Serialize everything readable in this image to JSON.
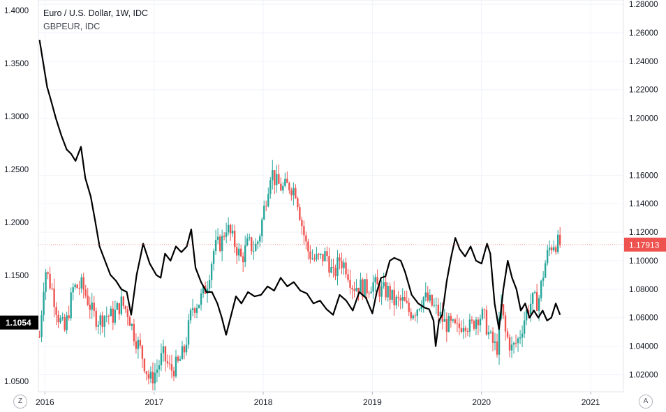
{
  "legend": {
    "main": "Euro / U.S. Dollar, 1W, IDC",
    "secondary": "GBPEUR, IDC"
  },
  "buttons": {
    "left": "Z",
    "right": "A"
  },
  "colors": {
    "up": "#26a69a",
    "down": "#ef5350",
    "line": "#000000",
    "last_price_label": "#ef5350",
    "left_label_bg": "#000000"
  },
  "chart_data": [
    {
      "type": "candlestick",
      "name": "Euro / U.S. Dollar, 1W, IDC",
      "axis": "left",
      "ylim": [
        1.04,
        1.41
      ],
      "y_ticks": [
        "1.4000",
        "1.3500",
        "1.3000",
        "1.2500",
        "1.2000",
        "1.1500",
        "1.0500"
      ],
      "x_labels": [
        "2016",
        "2017",
        "2018",
        "2019",
        "2020",
        "2021"
      ],
      "x_tick_values": [
        2016.0,
        2017.0,
        2018.0,
        2019.0,
        2020.0,
        2021.0
      ],
      "xlim": [
        2015.94,
        2021.3
      ],
      "anchors": [
        [
          2015.95,
          1.092
        ],
        [
          2016.0,
          1.157
        ],
        [
          2016.07,
          1.135
        ],
        [
          2016.12,
          1.112
        ],
        [
          2016.18,
          1.097
        ],
        [
          2016.26,
          1.138
        ],
        [
          2016.34,
          1.14
        ],
        [
          2016.4,
          1.125
        ],
        [
          2016.44,
          1.113
        ],
        [
          2016.5,
          1.107
        ],
        [
          2016.55,
          1.113
        ],
        [
          2016.62,
          1.111
        ],
        [
          2016.7,
          1.124
        ],
        [
          2016.76,
          1.115
        ],
        [
          2016.82,
          1.093
        ],
        [
          2016.88,
          1.078
        ],
        [
          2016.96,
          1.05
        ],
        [
          2017.02,
          1.06
        ],
        [
          2017.08,
          1.075
        ],
        [
          2017.15,
          1.06
        ],
        [
          2017.22,
          1.066
        ],
        [
          2017.28,
          1.08
        ],
        [
          2017.35,
          1.12
        ],
        [
          2017.42,
          1.126
        ],
        [
          2017.48,
          1.14
        ],
        [
          2017.55,
          1.175
        ],
        [
          2017.62,
          1.182
        ],
        [
          2017.66,
          1.197
        ],
        [
          2017.7,
          1.188
        ],
        [
          2017.76,
          1.175
        ],
        [
          2017.8,
          1.165
        ],
        [
          2017.86,
          1.18
        ],
        [
          2017.92,
          1.175
        ],
        [
          2017.96,
          1.185
        ],
        [
          2018.02,
          1.22
        ],
        [
          2018.07,
          1.25
        ],
        [
          2018.12,
          1.237
        ],
        [
          2018.18,
          1.232
        ],
        [
          2018.24,
          1.235
        ],
        [
          2018.3,
          1.23
        ],
        [
          2018.35,
          1.2
        ],
        [
          2018.4,
          1.175
        ],
        [
          2018.46,
          1.165
        ],
        [
          2018.52,
          1.165
        ],
        [
          2018.58,
          1.17
        ],
        [
          2018.64,
          1.148
        ],
        [
          2018.7,
          1.165
        ],
        [
          2018.76,
          1.158
        ],
        [
          2018.82,
          1.14
        ],
        [
          2018.88,
          1.14
        ],
        [
          2018.94,
          1.137
        ],
        [
          2019.0,
          1.143
        ],
        [
          2019.08,
          1.135
        ],
        [
          2019.14,
          1.135
        ],
        [
          2019.2,
          1.125
        ],
        [
          2019.28,
          1.125
        ],
        [
          2019.34,
          1.115
        ],
        [
          2019.4,
          1.118
        ],
        [
          2019.46,
          1.13
        ],
        [
          2019.52,
          1.125
        ],
        [
          2019.6,
          1.115
        ],
        [
          2019.66,
          1.105
        ],
        [
          2019.72,
          1.102
        ],
        [
          2019.78,
          1.098
        ],
        [
          2019.84,
          1.108
        ],
        [
          2019.9,
          1.1
        ],
        [
          2019.96,
          1.112
        ],
        [
          2020.02,
          1.111
        ],
        [
          2020.08,
          1.09
        ],
        [
          2020.14,
          1.08
        ],
        [
          2020.18,
          1.12
        ],
        [
          2020.22,
          1.095
        ],
        [
          2020.28,
          1.08
        ],
        [
          2020.34,
          1.09
        ],
        [
          2020.4,
          1.112
        ],
        [
          2020.46,
          1.126
        ],
        [
          2020.52,
          1.125
        ],
        [
          2020.58,
          1.16
        ],
        [
          2020.62,
          1.175
        ],
        [
          2020.66,
          1.181
        ],
        [
          2020.7,
          1.18
        ],
        [
          2020.72,
          1.179
        ]
      ]
    },
    {
      "type": "line",
      "name": "GBPEUR, IDC",
      "axis": "right",
      "ylim": [
        1.008,
        1.283
      ],
      "y_ticks": [
        "1.28000",
        "1.26000",
        "1.24000",
        "1.22000",
        "1.20000",
        "1.16000",
        "1.14000",
        "1.12000",
        "1.10000",
        "1.08000",
        "1.06000",
        "1.04000",
        "1.02000"
      ],
      "points": [
        [
          2015.95,
          1.255
        ],
        [
          2016.02,
          1.222
        ],
        [
          2016.05,
          1.214
        ],
        [
          2016.1,
          1.2
        ],
        [
          2016.15,
          1.188
        ],
        [
          2016.2,
          1.178
        ],
        [
          2016.24,
          1.175
        ],
        [
          2016.28,
          1.17
        ],
        [
          2016.33,
          1.18
        ],
        [
          2016.37,
          1.158
        ],
        [
          2016.42,
          1.145
        ],
        [
          2016.46,
          1.128
        ],
        [
          2016.5,
          1.11
        ],
        [
          2016.55,
          1.1
        ],
        [
          2016.6,
          1.09
        ],
        [
          2016.65,
          1.086
        ],
        [
          2016.7,
          1.08
        ],
        [
          2016.75,
          1.078
        ],
        [
          2016.79,
          1.062
        ],
        [
          2016.84,
          1.09
        ],
        [
          2016.9,
          1.112
        ],
        [
          2016.96,
          1.098
        ],
        [
          2017.02,
          1.09
        ],
        [
          2017.06,
          1.088
        ],
        [
          2017.1,
          1.105
        ],
        [
          2017.15,
          1.1
        ],
        [
          2017.2,
          1.11
        ],
        [
          2017.25,
          1.106
        ],
        [
          2017.3,
          1.11
        ],
        [
          2017.34,
          1.122
        ],
        [
          2017.38,
          1.095
        ],
        [
          2017.43,
          1.085
        ],
        [
          2017.48,
          1.078
        ],
        [
          2017.53,
          1.078
        ],
        [
          2017.58,
          1.07
        ],
        [
          2017.62,
          1.06
        ],
        [
          2017.66,
          1.048
        ],
        [
          2017.7,
          1.06
        ],
        [
          2017.75,
          1.075
        ],
        [
          2017.8,
          1.07
        ],
        [
          2017.86,
          1.078
        ],
        [
          2017.92,
          1.075
        ],
        [
          2017.98,
          1.076
        ],
        [
          2018.04,
          1.082
        ],
        [
          2018.1,
          1.079
        ],
        [
          2018.16,
          1.088
        ],
        [
          2018.22,
          1.082
        ],
        [
          2018.28,
          1.085
        ],
        [
          2018.34,
          1.079
        ],
        [
          2018.4,
          1.077
        ],
        [
          2018.46,
          1.07
        ],
        [
          2018.52,
          1.072
        ],
        [
          2018.58,
          1.066
        ],
        [
          2018.64,
          1.062
        ],
        [
          2018.7,
          1.076
        ],
        [
          2018.76,
          1.072
        ],
        [
          2018.82,
          1.065
        ],
        [
          2018.88,
          1.078
        ],
        [
          2018.94,
          1.074
        ],
        [
          2019.0,
          1.063
        ],
        [
          2019.04,
          1.078
        ],
        [
          2019.08,
          1.088
        ],
        [
          2019.12,
          1.089
        ],
        [
          2019.16,
          1.1
        ],
        [
          2019.2,
          1.102
        ],
        [
          2019.26,
          1.1
        ],
        [
          2019.3,
          1.092
        ],
        [
          2019.36,
          1.076
        ],
        [
          2019.42,
          1.07
        ],
        [
          2019.48,
          1.067
        ],
        [
          2019.52,
          1.066
        ],
        [
          2019.56,
          1.058
        ],
        [
          2019.58,
          1.04
        ],
        [
          2019.61,
          1.058
        ],
        [
          2019.64,
          1.062
        ],
        [
          2019.68,
          1.085
        ],
        [
          2019.72,
          1.102
        ],
        [
          2019.76,
          1.116
        ],
        [
          2019.8,
          1.108
        ],
        [
          2019.85,
          1.103
        ],
        [
          2019.9,
          1.11
        ],
        [
          2019.95,
          1.1
        ],
        [
          2020.0,
          1.098
        ],
        [
          2020.05,
          1.112
        ],
        [
          2020.08,
          1.105
        ],
        [
          2020.12,
          1.07
        ],
        [
          2020.16,
          1.052
        ],
        [
          2020.2,
          1.08
        ],
        [
          2020.24,
          1.1
        ],
        [
          2020.28,
          1.088
        ],
        [
          2020.32,
          1.08
        ],
        [
          2020.36,
          1.065
        ],
        [
          2020.4,
          1.07
        ],
        [
          2020.44,
          1.06
        ],
        [
          2020.48,
          1.065
        ],
        [
          2020.52,
          1.06
        ],
        [
          2020.56,
          1.065
        ],
        [
          2020.6,
          1.058
        ],
        [
          2020.64,
          1.06
        ],
        [
          2020.68,
          1.07
        ],
        [
          2020.72,
          1.062
        ]
      ]
    }
  ],
  "axis_labels": {
    "left_current": "1.1054",
    "right_current": "1.17913"
  }
}
